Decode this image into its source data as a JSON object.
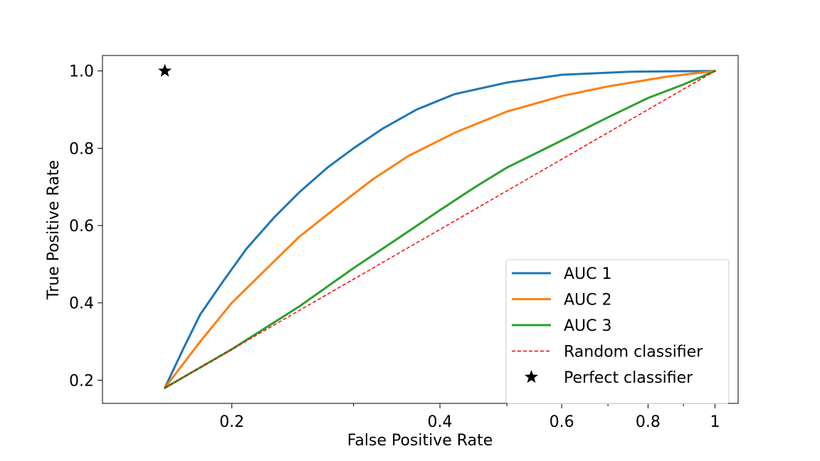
{
  "chart_data": {
    "type": "line",
    "title": "",
    "xlabel": "False Positive Rate",
    "ylabel": "True Positive Rate",
    "x_scale": "log",
    "xlim": [
      0.13,
      1.08
    ],
    "ylim": [
      0.14,
      1.04
    ],
    "x_ticks": [
      {
        "value": 0.2,
        "label": "0.2"
      },
      {
        "value": 0.4,
        "label": "0.4"
      },
      {
        "value": 0.6,
        "label": "0.6"
      },
      {
        "value": 0.8,
        "label": "0.8"
      },
      {
        "value": 1.0,
        "label": "1"
      }
    ],
    "x_minor_ticks": [
      0.3,
      0.5,
      0.7,
      0.9
    ],
    "y_ticks": [
      {
        "value": 0.2,
        "label": "0.2"
      },
      {
        "value": 0.4,
        "label": "0.4"
      },
      {
        "value": 0.6,
        "label": "0.6"
      },
      {
        "value": 0.8,
        "label": "0.8"
      },
      {
        "value": 1.0,
        "label": "1.0"
      }
    ],
    "grid": false,
    "legend_position": "lower-right",
    "series": [
      {
        "name": "AUC 1",
        "color": "#1f77b4",
        "style": "solid",
        "points": [
          [
            0.16,
            0.18
          ],
          [
            0.17,
            0.28
          ],
          [
            0.18,
            0.37
          ],
          [
            0.195,
            0.46
          ],
          [
            0.21,
            0.54
          ],
          [
            0.23,
            0.62
          ],
          [
            0.25,
            0.685
          ],
          [
            0.275,
            0.75
          ],
          [
            0.3,
            0.8
          ],
          [
            0.33,
            0.85
          ],
          [
            0.37,
            0.9
          ],
          [
            0.42,
            0.94
          ],
          [
            0.5,
            0.97
          ],
          [
            0.6,
            0.99
          ],
          [
            0.75,
            0.998
          ],
          [
            1.0,
            1.0
          ]
        ]
      },
      {
        "name": "AUC 2",
        "color": "#ff7f0e",
        "style": "solid",
        "points": [
          [
            0.16,
            0.18
          ],
          [
            0.18,
            0.3
          ],
          [
            0.2,
            0.4
          ],
          [
            0.225,
            0.49
          ],
          [
            0.25,
            0.57
          ],
          [
            0.28,
            0.64
          ],
          [
            0.32,
            0.72
          ],
          [
            0.36,
            0.78
          ],
          [
            0.42,
            0.84
          ],
          [
            0.5,
            0.895
          ],
          [
            0.6,
            0.935
          ],
          [
            0.7,
            0.96
          ],
          [
            0.85,
            0.985
          ],
          [
            1.0,
            1.0
          ]
        ]
      },
      {
        "name": "AUC 3",
        "color": "#2ca02c",
        "style": "solid",
        "points": [
          [
            0.16,
            0.18
          ],
          [
            0.2,
            0.28
          ],
          [
            0.25,
            0.39
          ],
          [
            0.3,
            0.49
          ],
          [
            0.35,
            0.57
          ],
          [
            0.4,
            0.64
          ],
          [
            0.45,
            0.7
          ],
          [
            0.5,
            0.75
          ],
          [
            0.6,
            0.82
          ],
          [
            0.7,
            0.88
          ],
          [
            0.8,
            0.93
          ],
          [
            0.9,
            0.965
          ],
          [
            1.0,
            1.0
          ]
        ]
      },
      {
        "name": "Random classifier",
        "color": "#ff0000",
        "style": "dashed",
        "points": [
          [
            0.16,
            0.18
          ],
          [
            1.0,
            1.0
          ]
        ]
      },
      {
        "name": "Perfect classifier",
        "color": "#000000",
        "style": "marker",
        "marker": "star",
        "points": [
          [
            0.16,
            1.0
          ]
        ]
      }
    ]
  }
}
